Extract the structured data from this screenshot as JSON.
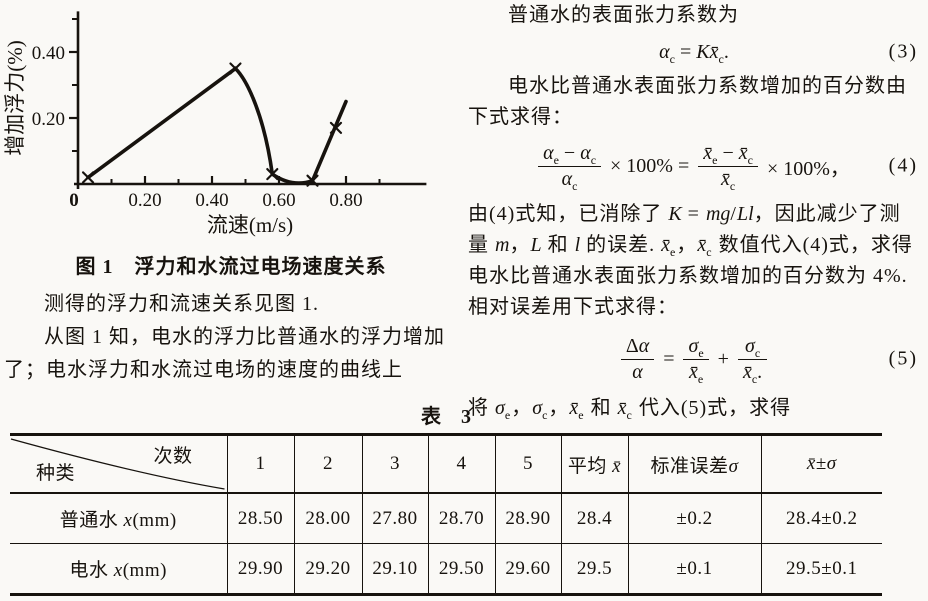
{
  "page": {
    "background": "#faf9f6",
    "text_color": "#17130e",
    "ink": "#17130e"
  },
  "chart_data": {
    "type": "line",
    "caption": "图 1　浮力和水流过电场速度关系",
    "xlabel": "流速(m/s)",
    "ylabel": "增加浮力(%)",
    "xlim": [
      0,
      1.04
    ],
    "ylim": [
      0,
      0.52
    ],
    "x_major_ticks": [
      0.2,
      0.4,
      0.6,
      0.8
    ],
    "x_minor_ticks": [
      0.1,
      0.3,
      0.5,
      0.7,
      0.9
    ],
    "y_major_ticks": [
      0.2,
      0.4
    ],
    "y_minor_ticks": [
      0.1,
      0.3,
      0.5
    ],
    "origin_label": "0",
    "marker": "x",
    "grid": false,
    "legend": "none",
    "points": [
      [
        0.03,
        0.02
      ],
      [
        0.47,
        0.35
      ],
      [
        0.58,
        0.03
      ],
      [
        0.7,
        0.01
      ],
      [
        0.77,
        0.17
      ]
    ],
    "line_end": [
      0.8,
      0.25
    ]
  },
  "left_column": {
    "p1": "测得的浮力和流速关系见图 1.",
    "p2": "从图 1 知，电水的浮力比普通水的浮力增加了；电水浮力和水流过电场的速度的曲线上"
  },
  "right_column": {
    "p1": "普通水的表面张力系数为",
    "eq3": {
      "html": "<i>α</i><sub>c</sub> = <i>Kx̄</i><sub>c</sub>.",
      "number": "(3)"
    },
    "p2": "电水比普通水表面张力系数增加的百分数由下式求得：",
    "eq4": {
      "f1_num_html": "<i>α</i><sub>e</sub> − <i>α</i><sub>c</sub>",
      "f1_den_html": "<i>α</i><sub>c</sub>",
      "mid_html": "× 100% =",
      "f2_num_html": "<i>x̄</i><sub>e</sub> − <i>x̄</i><sub>c</sub>",
      "f2_den_html": "<i>x̄</i><sub>c</sub>",
      "tail_html": "× 100%，",
      "number": "(4)"
    },
    "p3_html": "由(4)式知，已消除了 <i>K</i> = <i>mg</i>/<i>Ll</i>，因此减少了测量 <i>m</i>，<i>L</i> 和 <i>l</i> 的误差. <i>x̄</i><sub>e</sub>，<i>x̄</i><sub>c</sub> 数值代入(4)式，求得电水比普通水表面张力系数增加的百分数为 4%. 相对误差用下式求得：",
    "eq5": {
      "f1_num_html": "Δ<i>α</i>",
      "f1_den_html": "<i>α</i>",
      "eq_sign": "=",
      "f2_num_html": "<i>σ</i><sub>e</sub>",
      "f2_den_html": "<i>x̄</i><sub>e</sub>",
      "plus_sign": "+",
      "f3_num_html": "<i>σ</i><sub>c</sub>",
      "f3_den_html": "<i>x̄</i><sub>c</sub>.",
      "number": "(5)"
    },
    "p4_html": "将 <i>σ</i><sub>e</sub>，<i>σ</i><sub>c</sub>，<i>x̄</i><sub>e</sub> 和 <i>x̄</i><sub>c</sub> 代入(5)式，求得"
  },
  "table": {
    "title": "表　3",
    "corner_top": "次数",
    "corner_bottom": "种类",
    "trial_headers": [
      "1",
      "2",
      "3",
      "4",
      "5"
    ],
    "header_avg_html": "平均 <i>x̄</i>",
    "header_std_html": "标准误差<i>σ</i>",
    "header_xs_html": "<i>x̄</i>±<i>σ</i>",
    "rows": [
      {
        "label_html": "普通水 <i>x</i>(mm)",
        "c1": "28.50",
        "c2": "28.00",
        "c3": "27.80",
        "c4": "28.70",
        "c5": "28.90",
        "avg": "28.4",
        "std": "±0.2",
        "xs": "28.4±0.2"
      },
      {
        "label_html": "电水 <i>x</i>(mm)",
        "c1": "29.90",
        "c2": "29.20",
        "c3": "29.10",
        "c4": "29.50",
        "c5": "29.60",
        "avg": "29.5",
        "std": "±0.1",
        "xs": "29.5±0.1"
      }
    ]
  }
}
